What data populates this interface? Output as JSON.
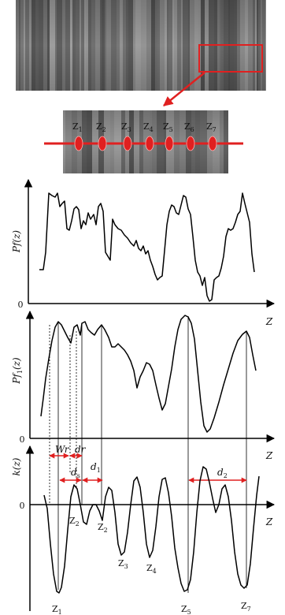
{
  "colors": {
    "accent": "#e02020",
    "texture_dark": "#5a5a5a",
    "texture_light": "#9a9a9a"
  },
  "peak_labels": [
    "Z1",
    "Z2",
    "Z3",
    "Z4",
    "Z5",
    "Z6",
    "Z7"
  ],
  "plot1": {
    "ylabel": "Pf(z)",
    "origin_label": "0",
    "xlabel": "Z"
  },
  "plot2": {
    "ylabel": "Pf1(z)",
    "origin_label": "0",
    "xlabel": "Z",
    "annotations": {
      "wr": "Wr",
      "dr": "dr",
      "ds": "ds",
      "d1": "d1",
      "d2": "d2"
    }
  },
  "plot3": {
    "ylabel": "k(z)",
    "origin_label": "0",
    "xlabel": "Z",
    "bottom_labels": [
      "Z2",
      "Z2",
      "Z1",
      "Z3",
      "Z4",
      "Z5",
      "Z7"
    ]
  }
}
